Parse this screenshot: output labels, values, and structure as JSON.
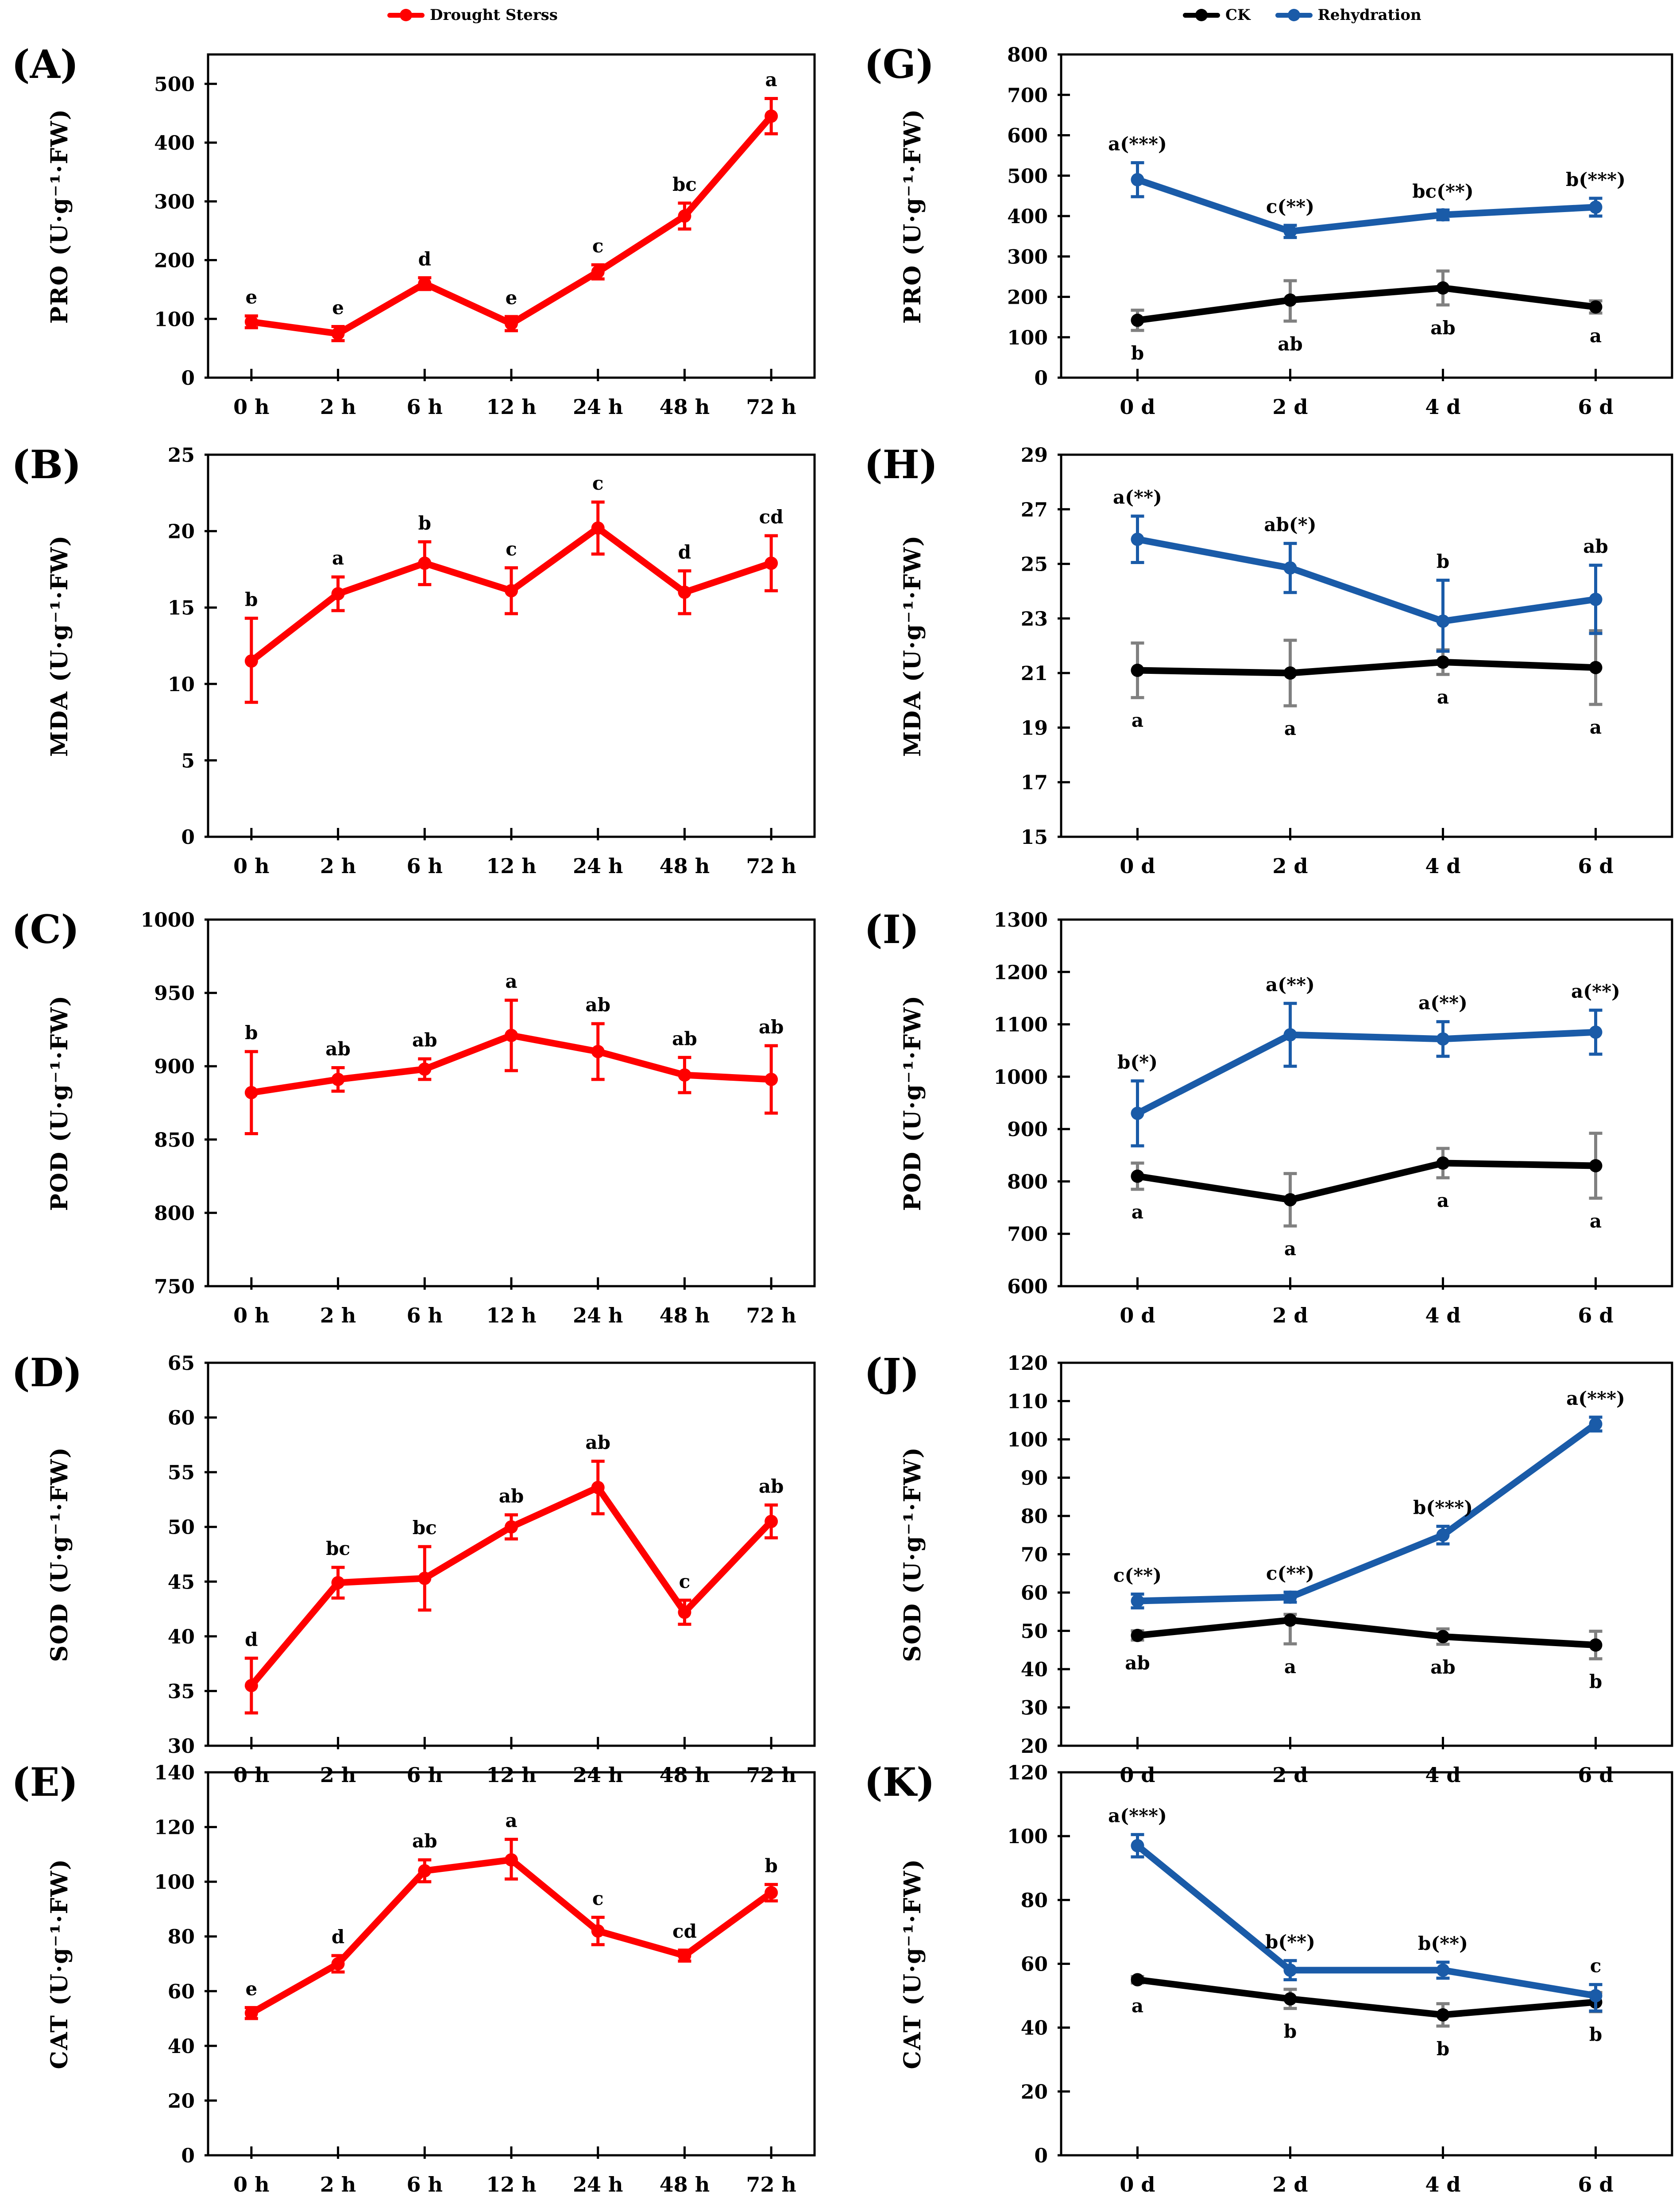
{
  "legend": {
    "drought": {
      "label": "Drought Sterss",
      "color": "#ff0000"
    },
    "ck": {
      "label": "CK",
      "color": "#000000"
    },
    "rehydration": {
      "label": "Rehydration",
      "color": "#1a5ba8"
    }
  },
  "colors": {
    "red": "#ff0000",
    "black": "#000000",
    "blue": "#1a5ba8",
    "ck_error": "#808080",
    "axis": "#000000"
  },
  "chart_data": [
    {
      "id": "A",
      "panel_label": "(A)",
      "type": "line",
      "ylabel": "PRO (U·g⁻¹·FW)",
      "ylim": [
        0,
        550
      ],
      "yticks": [
        0,
        100,
        200,
        300,
        400,
        500
      ],
      "grid": false,
      "categories": [
        "0 h",
        "2 h",
        "6 h",
        "12 h",
        "24 h",
        "48 h",
        "72 h"
      ],
      "series": [
        {
          "name": "Drought Sterss",
          "color": "#ff0000",
          "err_color": "#ff0000",
          "letter_color": "#ff0000",
          "letters_pos": "above",
          "values": [
            95,
            75,
            160,
            92,
            180,
            275,
            445
          ],
          "err": [
            10,
            12,
            10,
            12,
            12,
            22,
            30
          ],
          "letters": [
            "e",
            "e",
            "d",
            "e",
            "c",
            "bc",
            "a"
          ]
        }
      ]
    },
    {
      "id": "B",
      "panel_label": "(B)",
      "type": "line",
      "ylabel": "MDA (U·g⁻¹·FW)",
      "ylim": [
        0,
        25
      ],
      "yticks": [
        0,
        5,
        10,
        15,
        20,
        25
      ],
      "grid": false,
      "categories": [
        "0 h",
        "2 h",
        "6 h",
        "12 h",
        "24 h",
        "48 h",
        "72 h"
      ],
      "series": [
        {
          "name": "Drought Sterss",
          "color": "#ff0000",
          "err_color": "#ff0000",
          "letter_color": "#ff0000",
          "letters_pos": "above",
          "values": [
            11.5,
            15.9,
            17.9,
            16.1,
            20.2,
            16.0,
            17.9
          ],
          "err": [
            [
              2.8,
              2.7
            ],
            1.1,
            1.4,
            1.5,
            1.7,
            1.4,
            1.8
          ],
          "letters": [
            "b",
            "a",
            "b",
            "c",
            "c",
            "d",
            "cd"
          ]
        }
      ]
    },
    {
      "id": "C",
      "panel_label": "(C)",
      "type": "line",
      "ylabel": "POD (U·g⁻¹·FW)",
      "ylim": [
        750,
        1000
      ],
      "yticks": [
        750,
        800,
        850,
        900,
        950,
        1000
      ],
      "grid": false,
      "categories": [
        "0 h",
        "2 h",
        "6 h",
        "12 h",
        "24 h",
        "48 h",
        "72 h"
      ],
      "series": [
        {
          "name": "Drought Sterss",
          "color": "#ff0000",
          "err_color": "#ff0000",
          "letter_color": "#ff0000",
          "letters_pos": "above",
          "values": [
            882,
            891,
            898,
            921,
            910,
            894,
            891
          ],
          "err": [
            28,
            8,
            7,
            24,
            19,
            12,
            23
          ],
          "letters": [
            "b",
            "ab",
            "ab",
            "a",
            "ab",
            "ab",
            "ab"
          ]
        }
      ]
    },
    {
      "id": "D",
      "panel_label": "(D)",
      "type": "line",
      "ylabel": "SOD (U·g⁻¹·FW)",
      "ylim": [
        30,
        65
      ],
      "yticks": [
        30,
        35,
        40,
        45,
        50,
        55,
        60,
        65
      ],
      "grid": false,
      "categories": [
        "0 h",
        "2 h",
        "6 h",
        "12 h",
        "24 h",
        "48 h",
        "72 h"
      ],
      "series": [
        {
          "name": "Drought Sterss",
          "color": "#ff0000",
          "err_color": "#ff0000",
          "letter_color": "#ff0000",
          "letters_pos": "above",
          "values": [
            35.5,
            44.9,
            45.3,
            50.0,
            53.6,
            42.2,
            50.5
          ],
          "err": [
            2.5,
            1.4,
            2.9,
            1.1,
            2.4,
            1.1,
            1.5
          ],
          "letters": [
            "d",
            "bc",
            "bc",
            "ab",
            "ab",
            "c",
            "ab"
          ]
        }
      ]
    },
    {
      "id": "E",
      "panel_label": "(E)",
      "type": "line",
      "ylabel": "CAT (U·g⁻¹·FW)",
      "ylim": [
        0,
        140
      ],
      "yticks": [
        0,
        20,
        40,
        60,
        80,
        100,
        120,
        140
      ],
      "grid": false,
      "categories": [
        "0 h",
        "2 h",
        "6 h",
        "12 h",
        "24 h",
        "48 h",
        "72 h"
      ],
      "series": [
        {
          "name": "Drought Sterss",
          "color": "#ff0000",
          "err_color": "#ff0000",
          "letter_color": "#ff0000",
          "letters_pos": "above",
          "values": [
            52,
            70,
            104,
            108,
            82,
            73,
            96
          ],
          "err": [
            2,
            3,
            4,
            [
              7.5,
              7
            ],
            5,
            2,
            3
          ],
          "letters": [
            "e",
            "d",
            "ab",
            "a",
            "c",
            "cd",
            "b"
          ]
        }
      ]
    },
    {
      "id": "G",
      "panel_label": "(G)",
      "type": "line",
      "ylabel": "PRO (U·g⁻¹·FW)",
      "ylim": [
        0,
        800
      ],
      "yticks": [
        0,
        100,
        200,
        300,
        400,
        500,
        600,
        700,
        800
      ],
      "grid": false,
      "categories": [
        "0 d",
        "2 d",
        "4 d",
        "6 d"
      ],
      "series": [
        {
          "name": "CK",
          "color": "#000000",
          "err_color": "#808080",
          "letter_color": "#000000",
          "letters_pos": "below",
          "values": [
            142,
            192,
            222,
            175
          ],
          "err": [
            25,
            [
              48,
              52
            ],
            42,
            15
          ],
          "letters": [
            "b",
            "ab",
            "ab",
            "a"
          ]
        },
        {
          "name": "Rehydration",
          "color": "#1a5ba8",
          "err_color": "#1a5ba8",
          "letter_color": "#1a5ba8",
          "letters_pos": "above",
          "values": [
            490,
            362,
            403,
            422
          ],
          "err": [
            42,
            15,
            12,
            22
          ],
          "letters": [
            "a(***)",
            "c(**)",
            "bc(**)",
            "b(***)"
          ]
        }
      ]
    },
    {
      "id": "H",
      "panel_label": "(H)",
      "type": "line",
      "ylabel": "MDA (U·g⁻¹·FW)",
      "ylim": [
        15,
        29
      ],
      "yticks": [
        15,
        17,
        19,
        21,
        23,
        25,
        27,
        29
      ],
      "grid": false,
      "categories": [
        "0 d",
        "2 d",
        "4 d",
        "6 d"
      ],
      "series": [
        {
          "name": "CK",
          "color": "#000000",
          "err_color": "#808080",
          "letter_color": "#000000",
          "letters_pos": "below",
          "values": [
            21.1,
            21.0,
            21.4,
            21.2
          ],
          "err": [
            1.0,
            1.2,
            0.45,
            1.35
          ],
          "letters": [
            "a",
            "a",
            "a",
            "a"
          ]
        },
        {
          "name": "Rehydration",
          "color": "#1a5ba8",
          "err_color": "#1a5ba8",
          "letter_color": "#1a5ba8",
          "letters_pos": "above",
          "values": [
            25.9,
            24.85,
            22.9,
            23.7
          ],
          "err": [
            0.85,
            0.9,
            [
              1.5,
              1.1
            ],
            1.25
          ],
          "letters": [
            "a(**)",
            "ab(*)",
            "b",
            "ab"
          ]
        }
      ]
    },
    {
      "id": "I",
      "panel_label": "(I)",
      "type": "line",
      "ylabel": "POD (U·g⁻¹·FW)",
      "ylim": [
        600,
        1300
      ],
      "yticks": [
        600,
        700,
        800,
        900,
        1000,
        1100,
        1200,
        1300
      ],
      "grid": false,
      "categories": [
        "0 d",
        "2 d",
        "4 d",
        "6 d"
      ],
      "series": [
        {
          "name": "CK",
          "color": "#000000",
          "err_color": "#808080",
          "letter_color": "#000000",
          "letters_pos": "below",
          "values": [
            810,
            765,
            835,
            830
          ],
          "err": [
            25,
            50,
            28,
            62
          ],
          "letters": [
            "a",
            "a",
            "a",
            "a"
          ]
        },
        {
          "name": "Rehydration",
          "color": "#1a5ba8",
          "err_color": "#1a5ba8",
          "letter_color": "#1a5ba8",
          "letters_pos": "above",
          "values": [
            930,
            1080,
            1072,
            1085
          ],
          "err": [
            62,
            60,
            33,
            42
          ],
          "letters": [
            "b(*)",
            "a(**)",
            "a(**)",
            "a(**)"
          ]
        }
      ]
    },
    {
      "id": "J",
      "panel_label": "(J)",
      "type": "line",
      "ylabel": "SOD (U·g⁻¹·FW)",
      "ylim": [
        20,
        120
      ],
      "yticks": [
        20,
        30,
        40,
        50,
        60,
        70,
        80,
        90,
        100,
        110,
        120
      ],
      "grid": false,
      "categories": [
        "0 d",
        "2 d",
        "4 d",
        "6 d"
      ],
      "series": [
        {
          "name": "CK",
          "color": "#000000",
          "err_color": "#808080",
          "letter_color": "#000000",
          "letters_pos": "below",
          "values": [
            48.8,
            52.8,
            48.5,
            46.3
          ],
          "err": [
            1.2,
            [
              1.5,
              6.2
            ],
            2,
            3.6
          ],
          "letters": [
            "ab",
            "a",
            "ab",
            "b"
          ]
        },
        {
          "name": "Rehydration",
          "color": "#1a5ba8",
          "err_color": "#1a5ba8",
          "letter_color": "#1a5ba8",
          "letters_pos": "above",
          "values": [
            57.8,
            58.8,
            75,
            104
          ],
          "err": [
            1.8,
            1.3,
            2.3,
            1.8
          ],
          "letters": [
            "c(**)",
            "c(**)",
            "b(***)",
            "a(***)"
          ]
        }
      ]
    },
    {
      "id": "K",
      "panel_label": "(K)",
      "type": "line",
      "ylabel": "CAT (U·g⁻¹·FW)",
      "ylim": [
        0,
        120
      ],
      "yticks": [
        0,
        20,
        40,
        60,
        80,
        100,
        120
      ],
      "grid": false,
      "categories": [
        "0 d",
        "2 d",
        "4 d",
        "6 d"
      ],
      "series": [
        {
          "name": "CK",
          "color": "#000000",
          "err_color": "#808080",
          "letter_color": "#000000",
          "letters_pos": "below",
          "values": [
            55,
            49,
            44,
            48
          ],
          "err": [
            1,
            3,
            3.5,
            3
          ],
          "letters": [
            "a",
            "b",
            "b",
            "b"
          ]
        },
        {
          "name": "Rehydration",
          "color": "#1a5ba8",
          "err_color": "#1a5ba8",
          "letter_color": "#1a5ba8",
          "letters_pos": "above",
          "values": [
            97,
            58,
            58,
            50
          ],
          "err": [
            3.5,
            3,
            2.5,
            [
              3.5,
              4.8
            ]
          ],
          "letters": [
            "a(***)",
            "b(**)",
            "b(**)",
            "c"
          ]
        }
      ]
    }
  ]
}
